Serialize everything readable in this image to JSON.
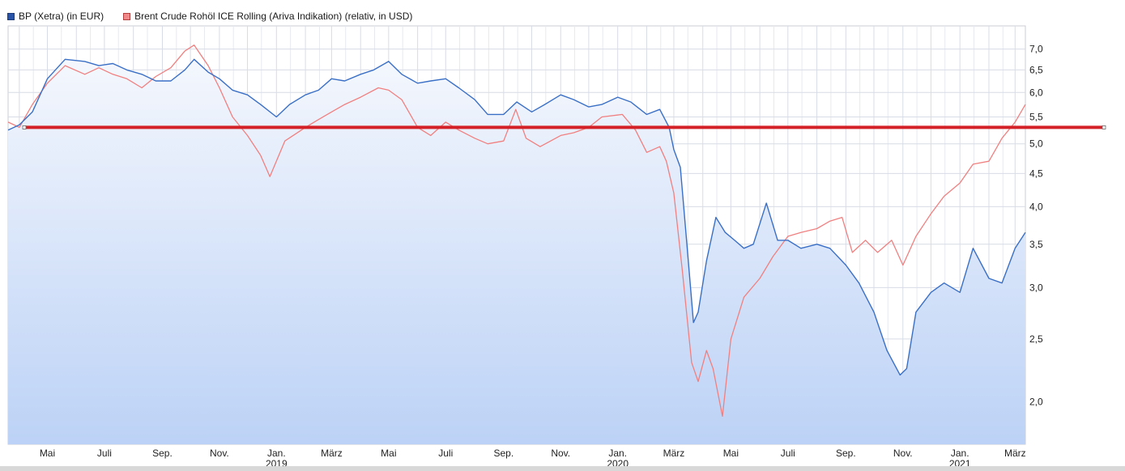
{
  "legend": {
    "bp": "BP (Xetra) (in EUR)",
    "brent": "Brent Crude Rohöl ICE Rolling (Ariva Indikation) (relativ, in USD)"
  },
  "colors": {
    "bp": "#3a6fc6",
    "bp_swatch": "#2953a6",
    "brent": "#f08080",
    "brent_swatch": "#f08a8a",
    "hline": "#d42027",
    "grid": "#d8dce6",
    "fill_top": "#f4f7fd",
    "fill_bottom": "#bcd2f6"
  },
  "chart_data": {
    "type": "line",
    "y_scale": "log",
    "ylim": [
      1.72,
      7.6
    ],
    "xlim": [
      "2018-03-20",
      "2021-03-12"
    ],
    "y_ticks": [
      "7,0",
      "6,5",
      "6,0",
      "5,5",
      "5,0",
      "4,5",
      "4,0",
      "3,5",
      "3,0",
      "2,5",
      "2,0"
    ],
    "y_tick_values": [
      7.0,
      6.5,
      6.0,
      5.5,
      5.0,
      4.5,
      4.0,
      3.5,
      3.0,
      2.5,
      2.0
    ],
    "x_ticks": [
      {
        "label": "Mai",
        "date": "2018-05-01"
      },
      {
        "label": "Juli",
        "date": "2018-07-01"
      },
      {
        "label": "Sep.",
        "date": "2018-09-01"
      },
      {
        "label": "Nov.",
        "date": "2018-11-01"
      },
      {
        "label": "Jan.",
        "year": "2019",
        "date": "2019-01-01"
      },
      {
        "label": "März",
        "date": "2019-03-01"
      },
      {
        "label": "Mai",
        "date": "2019-05-01"
      },
      {
        "label": "Juli",
        "date": "2019-07-01"
      },
      {
        "label": "Sep.",
        "date": "2019-09-01"
      },
      {
        "label": "Nov.",
        "date": "2019-11-01"
      },
      {
        "label": "Jan.",
        "year": "2020",
        "date": "2020-01-01"
      },
      {
        "label": "März",
        "date": "2020-03-01"
      },
      {
        "label": "Mai",
        "date": "2020-05-01"
      },
      {
        "label": "Juli",
        "date": "2020-07-01"
      },
      {
        "label": "Sep.",
        "date": "2020-09-01"
      },
      {
        "label": "Nov.",
        "date": "2020-11-01"
      },
      {
        "label": "Jan.",
        "year": "2021",
        "date": "2021-01-01"
      },
      {
        "label": "März",
        "date": "2021-03-01"
      }
    ],
    "reference_line": 5.3,
    "series": [
      {
        "name": "BP (Xetra) (in EUR)",
        "filled": true,
        "points": [
          [
            "2018-03-20",
            5.25
          ],
          [
            "2018-04-01",
            5.35
          ],
          [
            "2018-04-15",
            5.6
          ],
          [
            "2018-05-01",
            6.3
          ],
          [
            "2018-05-20",
            6.75
          ],
          [
            "2018-06-10",
            6.7
          ],
          [
            "2018-06-25",
            6.6
          ],
          [
            "2018-07-10",
            6.65
          ],
          [
            "2018-07-25",
            6.5
          ],
          [
            "2018-08-10",
            6.4
          ],
          [
            "2018-08-25",
            6.25
          ],
          [
            "2018-09-10",
            6.25
          ],
          [
            "2018-09-25",
            6.5
          ],
          [
            "2018-10-05",
            6.75
          ],
          [
            "2018-10-20",
            6.45
          ],
          [
            "2018-11-01",
            6.3
          ],
          [
            "2018-11-15",
            6.05
          ],
          [
            "2018-12-01",
            5.95
          ],
          [
            "2018-12-15",
            5.75
          ],
          [
            "2019-01-01",
            5.5
          ],
          [
            "2019-01-15",
            5.75
          ],
          [
            "2019-02-01",
            5.95
          ],
          [
            "2019-02-15",
            6.05
          ],
          [
            "2019-03-01",
            6.3
          ],
          [
            "2019-03-15",
            6.25
          ],
          [
            "2019-04-01",
            6.4
          ],
          [
            "2019-04-15",
            6.5
          ],
          [
            "2019-05-01",
            6.7
          ],
          [
            "2019-05-15",
            6.4
          ],
          [
            "2019-06-01",
            6.2
          ],
          [
            "2019-06-15",
            6.25
          ],
          [
            "2019-07-01",
            6.3
          ],
          [
            "2019-07-15",
            6.1
          ],
          [
            "2019-08-01",
            5.85
          ],
          [
            "2019-08-15",
            5.55
          ],
          [
            "2019-09-01",
            5.55
          ],
          [
            "2019-09-15",
            5.8
          ],
          [
            "2019-10-01",
            5.6
          ],
          [
            "2019-10-15",
            5.75
          ],
          [
            "2019-11-01",
            5.95
          ],
          [
            "2019-11-15",
            5.85
          ],
          [
            "2019-12-01",
            5.7
          ],
          [
            "2019-12-15",
            5.75
          ],
          [
            "2020-01-01",
            5.9
          ],
          [
            "2020-01-15",
            5.8
          ],
          [
            "2020-02-01",
            5.55
          ],
          [
            "2020-02-15",
            5.65
          ],
          [
            "2020-02-25",
            5.3
          ],
          [
            "2020-03-01",
            4.9
          ],
          [
            "2020-03-08",
            4.6
          ],
          [
            "2020-03-15",
            3.5
          ],
          [
            "2020-03-22",
            2.65
          ],
          [
            "2020-03-27",
            2.75
          ],
          [
            "2020-04-05",
            3.3
          ],
          [
            "2020-04-15",
            3.85
          ],
          [
            "2020-04-25",
            3.65
          ],
          [
            "2020-05-05",
            3.55
          ],
          [
            "2020-05-15",
            3.45
          ],
          [
            "2020-05-25",
            3.5
          ],
          [
            "2020-06-08",
            4.05
          ],
          [
            "2020-06-20",
            3.55
          ],
          [
            "2020-07-01",
            3.55
          ],
          [
            "2020-07-15",
            3.45
          ],
          [
            "2020-08-01",
            3.5
          ],
          [
            "2020-08-15",
            3.45
          ],
          [
            "2020-09-01",
            3.25
          ],
          [
            "2020-09-15",
            3.05
          ],
          [
            "2020-10-01",
            2.75
          ],
          [
            "2020-10-15",
            2.4
          ],
          [
            "2020-10-29",
            2.2
          ],
          [
            "2020-11-05",
            2.25
          ],
          [
            "2020-11-15",
            2.75
          ],
          [
            "2020-12-01",
            2.95
          ],
          [
            "2020-12-15",
            3.05
          ],
          [
            "2021-01-01",
            2.95
          ],
          [
            "2021-01-15",
            3.45
          ],
          [
            "2021-02-01",
            3.1
          ],
          [
            "2021-02-15",
            3.05
          ],
          [
            "2021-03-01",
            3.45
          ],
          [
            "2021-03-12",
            3.65
          ]
        ]
      },
      {
        "name": "Brent Crude Rohöl ICE Rolling (Ariva Indikation) (relativ, in USD)",
        "filled": false,
        "points": [
          [
            "2018-03-20",
            5.4
          ],
          [
            "2018-04-01",
            5.3
          ],
          [
            "2018-04-15",
            5.75
          ],
          [
            "2018-05-01",
            6.2
          ],
          [
            "2018-05-20",
            6.6
          ],
          [
            "2018-06-10",
            6.4
          ],
          [
            "2018-06-25",
            6.55
          ],
          [
            "2018-07-10",
            6.4
          ],
          [
            "2018-07-25",
            6.3
          ],
          [
            "2018-08-10",
            6.1
          ],
          [
            "2018-08-25",
            6.35
          ],
          [
            "2018-09-10",
            6.55
          ],
          [
            "2018-09-25",
            6.95
          ],
          [
            "2018-10-05",
            7.1
          ],
          [
            "2018-10-20",
            6.6
          ],
          [
            "2018-11-01",
            6.1
          ],
          [
            "2018-11-15",
            5.5
          ],
          [
            "2018-12-01",
            5.15
          ],
          [
            "2018-12-15",
            4.8
          ],
          [
            "2018-12-25",
            4.45
          ],
          [
            "2019-01-10",
            5.05
          ],
          [
            "2019-02-01",
            5.3
          ],
          [
            "2019-02-15",
            5.45
          ],
          [
            "2019-03-01",
            5.6
          ],
          [
            "2019-03-15",
            5.75
          ],
          [
            "2019-04-01",
            5.9
          ],
          [
            "2019-04-20",
            6.1
          ],
          [
            "2019-05-01",
            6.05
          ],
          [
            "2019-05-15",
            5.85
          ],
          [
            "2019-06-01",
            5.3
          ],
          [
            "2019-06-15",
            5.15
          ],
          [
            "2019-07-01",
            5.4
          ],
          [
            "2019-07-15",
            5.25
          ],
          [
            "2019-08-01",
            5.1
          ],
          [
            "2019-08-15",
            5.0
          ],
          [
            "2019-09-01",
            5.05
          ],
          [
            "2019-09-14",
            5.65
          ],
          [
            "2019-09-25",
            5.1
          ],
          [
            "2019-10-10",
            4.95
          ],
          [
            "2019-11-01",
            5.15
          ],
          [
            "2019-11-15",
            5.2
          ],
          [
            "2019-12-01",
            5.3
          ],
          [
            "2019-12-15",
            5.5
          ],
          [
            "2020-01-06",
            5.55
          ],
          [
            "2020-01-20",
            5.25
          ],
          [
            "2020-02-01",
            4.85
          ],
          [
            "2020-02-15",
            4.95
          ],
          [
            "2020-02-22",
            4.7
          ],
          [
            "2020-03-01",
            4.2
          ],
          [
            "2020-03-10",
            3.2
          ],
          [
            "2020-03-20",
            2.3
          ],
          [
            "2020-03-27",
            2.15
          ],
          [
            "2020-04-05",
            2.4
          ],
          [
            "2020-04-12",
            2.25
          ],
          [
            "2020-04-22",
            1.9
          ],
          [
            "2020-05-01",
            2.5
          ],
          [
            "2020-05-15",
            2.9
          ],
          [
            "2020-06-01",
            3.1
          ],
          [
            "2020-06-15",
            3.35
          ],
          [
            "2020-07-01",
            3.6
          ],
          [
            "2020-07-15",
            3.65
          ],
          [
            "2020-08-01",
            3.7
          ],
          [
            "2020-08-15",
            3.8
          ],
          [
            "2020-08-28",
            3.85
          ],
          [
            "2020-09-08",
            3.4
          ],
          [
            "2020-09-22",
            3.55
          ],
          [
            "2020-10-05",
            3.4
          ],
          [
            "2020-10-20",
            3.55
          ],
          [
            "2020-11-01",
            3.25
          ],
          [
            "2020-11-15",
            3.6
          ],
          [
            "2020-12-01",
            3.9
          ],
          [
            "2020-12-15",
            4.15
          ],
          [
            "2021-01-01",
            4.35
          ],
          [
            "2021-01-15",
            4.65
          ],
          [
            "2021-02-01",
            4.7
          ],
          [
            "2021-02-15",
            5.1
          ],
          [
            "2021-03-01",
            5.4
          ],
          [
            "2021-03-12",
            5.75
          ]
        ]
      }
    ]
  }
}
